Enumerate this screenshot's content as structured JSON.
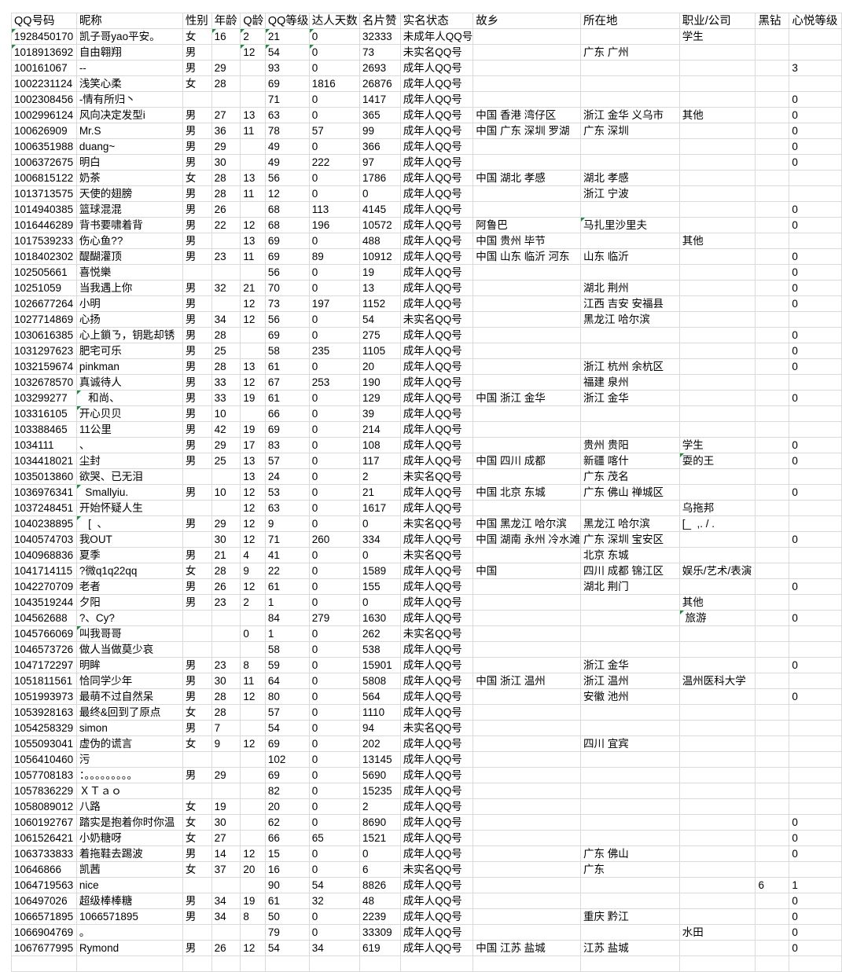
{
  "header": [
    "QQ号码",
    "昵称",
    "性别",
    "年龄",
    "Q龄",
    "QQ等级",
    "达人天数",
    "名片赞",
    "实名状态",
    "故乡",
    "所在地",
    "职业/公司",
    "黑钻",
    "心悦等级"
  ],
  "colors": {
    "grid": "#dadada",
    "text_flag": "#1e8a3a"
  },
  "rows": [
    {
      "cells": [
        "1928450170",
        "凯子哥yao平安。",
        "女",
        "16",
        "2",
        "21",
        "0",
        "32333",
        "未成年人QQ号",
        "",
        "",
        "学生",
        "",
        ""
      ],
      "flags": [
        0,
        3,
        4,
        5,
        6
      ]
    },
    {
      "cells": [
        "1018913692",
        "自由翱翔",
        "男",
        "",
        "12",
        "54",
        "0",
        "73",
        "未实名QQ号",
        "",
        "广东 广州",
        "",
        "",
        ""
      ],
      "flags": [
        0,
        4,
        5,
        6
      ]
    },
    {
      "cells": [
        "100161067",
        "--",
        "男",
        "29",
        "",
        "93",
        "0",
        "2693",
        "成年人QQ号",
        "",
        "",
        "",
        "",
        "3"
      ]
    },
    {
      "cells": [
        "1002231124",
        "浅笑心柔",
        "女",
        "28",
        "",
        "69",
        "1816",
        "26876",
        "成年人QQ号",
        "",
        "",
        "",
        "",
        ""
      ]
    },
    {
      "cells": [
        "1002308456",
        "-情有所归丶",
        "",
        "",
        "",
        "71",
        "0",
        "1417",
        "成年人QQ号",
        "",
        "",
        "",
        "",
        "0"
      ]
    },
    {
      "cells": [
        "1002996124",
        "风向决定发型i",
        "男",
        "27",
        "13",
        "63",
        "0",
        "365",
        "成年人QQ号",
        "中国 香港 湾仔区",
        "浙江 金华 义乌市",
        "其他",
        "",
        "0"
      ]
    },
    {
      "cells": [
        "100626909",
        "Mr.S",
        "男",
        "36",
        "11",
        "78",
        "57",
        "99",
        "成年人QQ号",
        "中国 广东 深圳 罗湖",
        "广东 深圳",
        "",
        "",
        "0"
      ]
    },
    {
      "cells": [
        "1006351988",
        "duang~",
        "男",
        "29",
        "",
        "49",
        "0",
        "366",
        "成年人QQ号",
        "",
        "",
        "",
        "",
        "0"
      ]
    },
    {
      "cells": [
        "1006372675",
        "明白",
        "男",
        "30",
        "",
        "49",
        "222",
        "97",
        "成年人QQ号",
        "",
        "",
        "",
        "",
        "0"
      ]
    },
    {
      "cells": [
        "1006815122",
        "奶茶",
        "女",
        "28",
        "13",
        "56",
        "0",
        "1786",
        "成年人QQ号",
        "中国 湖北 孝感",
        "湖北 孝感",
        "",
        "",
        ""
      ]
    },
    {
      "cells": [
        "1013713575",
        "天使的翅膀",
        "男",
        "28",
        "11",
        "12",
        "0",
        "0",
        "成年人QQ号",
        "",
        "浙江 宁波",
        "",
        "",
        ""
      ]
    },
    {
      "cells": [
        "1014940385",
        "篮球混混",
        "男",
        "26",
        "",
        "68",
        "113",
        "4145",
        "成年人QQ号",
        "",
        "",
        "",
        "",
        "0"
      ]
    },
    {
      "cells": [
        "1016446289",
        "背书要啸着背",
        "男",
        "22",
        "12",
        "68",
        "196",
        "10572",
        "成年人QQ号",
        "阿鲁巴",
        "马扎里沙里夫",
        "",
        "",
        "0"
      ],
      "flags": [
        10
      ]
    },
    {
      "cells": [
        "1017539233",
        "伤心鱼??",
        "男",
        "",
        "13",
        "69",
        "0",
        "488",
        "成年人QQ号",
        "中国 贵州 毕节",
        "",
        "其他",
        "",
        ""
      ]
    },
    {
      "cells": [
        "1018402302",
        "醍醐灌顶",
        "男",
        "23",
        "11",
        "69",
        "89",
        "10912",
        "成年人QQ号",
        "中国 山东 临沂 河东",
        "山东 临沂",
        "",
        "",
        "0"
      ]
    },
    {
      "cells": [
        "102505661",
        "喜悦樂",
        "",
        "",
        "",
        "56",
        "0",
        "19",
        "成年人QQ号",
        "",
        "",
        "",
        "",
        "0"
      ]
    },
    {
      "cells": [
        "10251059",
        "当我遇上你",
        "男",
        "32",
        "21",
        "70",
        "0",
        "13",
        "成年人QQ号",
        "",
        "湖北 荆州",
        "",
        "",
        "0"
      ]
    },
    {
      "cells": [
        "1026677264",
        "小明",
        "男",
        "",
        "12",
        "73",
        "197",
        "1152",
        "成年人QQ号",
        "",
        "江西 吉安 安福县",
        "",
        "",
        "0"
      ]
    },
    {
      "cells": [
        "1027714869",
        "心扬",
        "男",
        "34",
        "12",
        "56",
        "0",
        "54",
        "未实名QQ号",
        "",
        "黑龙江 哈尔滨",
        "",
        "",
        ""
      ]
    },
    {
      "cells": [
        "1030616385",
        "心上鎖ㄋ，钥匙却锈",
        "男",
        "28",
        "",
        "69",
        "0",
        "275",
        "成年人QQ号",
        "",
        "",
        "",
        "",
        "0"
      ]
    },
    {
      "cells": [
        "1031297623",
        "肥宅可乐",
        "男",
        "25",
        "",
        "58",
        "235",
        "1105",
        "成年人QQ号",
        "",
        "",
        "",
        "",
        "0"
      ]
    },
    {
      "cells": [
        "1032159674",
        "pinkman",
        "男",
        "28",
        "13",
        "61",
        "0",
        "20",
        "成年人QQ号",
        "",
        "浙江 杭州 余杭区",
        "",
        "",
        "0"
      ]
    },
    {
      "cells": [
        "1032678570",
        "真诚待人",
        "男",
        "33",
        "12",
        "67",
        "253",
        "190",
        "成年人QQ号",
        "",
        "福建 泉州",
        "",
        "",
        ""
      ]
    },
    {
      "cells": [
        "103299277",
        "   和尚、",
        "男",
        "33",
        "19",
        "61",
        "0",
        "129",
        "成年人QQ号",
        "中国 浙江 金华",
        "浙江 金华",
        "",
        "",
        "0"
      ],
      "flags": [
        1
      ]
    },
    {
      "cells": [
        "103316105",
        "开心贝贝",
        "男",
        "10",
        "",
        "66",
        "0",
        "39",
        "成年人QQ号",
        "",
        "",
        "",
        "",
        ""
      ],
      "flags": [
        1
      ]
    },
    {
      "cells": [
        "103388465",
        "11公里",
        "男",
        "42",
        "19",
        "69",
        "0",
        "214",
        "成年人QQ号",
        "",
        "",
        "",
        "",
        ""
      ]
    },
    {
      "cells": [
        "1034111",
        "、",
        "男",
        "29",
        "17",
        "83",
        "0",
        "108",
        "成年人QQ号",
        "",
        "贵州 贵阳",
        "学生",
        "",
        "0"
      ]
    },
    {
      "cells": [
        "1034418021",
        "尘封",
        "男",
        "25",
        "13",
        "57",
        "0",
        "117",
        "成年人QQ号",
        "中国 四川 成都",
        "新疆 喀什",
        "耍的王",
        "",
        "0"
      ],
      "flags": [
        11
      ]
    },
    {
      "cells": [
        "1035013860",
        "欲哭、已无泪",
        "",
        "",
        "13",
        "24",
        "0",
        "2",
        "未实名QQ号",
        "",
        "广东 茂名",
        "",
        "",
        ""
      ]
    },
    {
      "cells": [
        "1036976341",
        "  Smallyiu.",
        "男",
        "10",
        "12",
        "53",
        "0",
        "21",
        "成年人QQ号",
        "中国 北京 东城",
        "广东 佛山 禅城区",
        "",
        "",
        "0"
      ],
      "flags": [
        1
      ]
    },
    {
      "cells": [
        "1037248451",
        "开始怀疑人生",
        "",
        "",
        "12",
        "63",
        "0",
        "1617",
        "成年人QQ号",
        "",
        "",
        "乌拖邦",
        "",
        ""
      ]
    },
    {
      "cells": [
        "1040238895",
        "   [  、",
        "男",
        "29",
        "12",
        "9",
        "0",
        "0",
        "未实名QQ号",
        "中国 黑龙江 哈尔滨",
        "黑龙江 哈尔滨",
        "[_  ,. / .",
        "",
        ""
      ],
      "flags": [
        1
      ]
    },
    {
      "cells": [
        "1040574703",
        "我OUT",
        "",
        "30",
        "12",
        "71",
        "260",
        "334",
        "成年人QQ号",
        "中国 湖南 永州 冷水滩",
        "广东 深圳 宝安区",
        "",
        "",
        "0"
      ]
    },
    {
      "cells": [
        "1040968836",
        "夏季",
        "男",
        "21",
        "4",
        "41",
        "0",
        "0",
        "未实名QQ号",
        "",
        "北京 东城",
        "",
        "",
        ""
      ]
    },
    {
      "cells": [
        "1041714115",
        "?微q1q22qq",
        "女",
        "28",
        "9",
        "22",
        "0",
        "1589",
        "成年人QQ号",
        "中国",
        "四川 成都 锦江区",
        "娱乐/艺术/表演",
        "",
        ""
      ]
    },
    {
      "cells": [
        "1042270709",
        "老者",
        "男",
        "26",
        "12",
        "61",
        "0",
        "155",
        "成年人QQ号",
        "",
        "湖北 荆门",
        "",
        "",
        "0"
      ]
    },
    {
      "cells": [
        "1043519244",
        "夕阳",
        "男",
        "23",
        "2",
        "1",
        "0",
        "0",
        "成年人QQ号",
        "",
        "",
        "其他",
        "",
        ""
      ]
    },
    {
      "cells": [
        "104562688",
        "?、Cy?",
        "",
        "",
        "",
        "84",
        "279",
        "1630",
        "成年人QQ号",
        "",
        "",
        " 旅游",
        "",
        "0"
      ],
      "flags": [
        11
      ]
    },
    {
      "cells": [
        "1045766069",
        "叫我哥哥",
        "",
        "",
        "0",
        "1",
        "0",
        "262",
        "未实名QQ号",
        "",
        "",
        "",
        "",
        ""
      ],
      "flags": [
        1
      ]
    },
    {
      "cells": [
        "1046573726",
        "做人当做莫少哀",
        "",
        "",
        "",
        "58",
        "0",
        "538",
        "成年人QQ号",
        "",
        "",
        "",
        "",
        ""
      ]
    },
    {
      "cells": [
        "1047172297",
        "明眸",
        "男",
        "23",
        "8",
        "59",
        "0",
        "15901",
        "成年人QQ号",
        "",
        "浙江 金华",
        "",
        "",
        "0"
      ]
    },
    {
      "cells": [
        "1051811561",
        "恰同学少年",
        "男",
        "30",
        "11",
        "64",
        "0",
        "5808",
        "成年人QQ号",
        "中国 浙江 温州",
        "浙江 温州",
        "温州医科大学",
        "",
        ""
      ]
    },
    {
      "cells": [
        "1051993973",
        "最萌不过自然呆",
        "男",
        "28",
        "12",
        "80",
        "0",
        "564",
        "成年人QQ号",
        "",
        "安徽 池州",
        "",
        "",
        "0"
      ]
    },
    {
      "cells": [
        "1053928163",
        "最终&回到了原点",
        "女",
        "28",
        "",
        "57",
        "0",
        "1110",
        "成年人QQ号",
        "",
        "",
        "",
        "",
        ""
      ]
    },
    {
      "cells": [
        "1054258329",
        "simon",
        "男",
        "7",
        "",
        "54",
        "0",
        "94",
        "未实名QQ号",
        "",
        "",
        "",
        "",
        ""
      ]
    },
    {
      "cells": [
        "1055093041",
        "虚伪的谎言",
        "女",
        "9",
        "12",
        "69",
        "0",
        "202",
        "成年人QQ号",
        "",
        "四川 宜宾",
        "",
        "",
        ""
      ]
    },
    {
      "cells": [
        "1056410460",
        "污",
        "",
        "",
        "",
        "102",
        "0",
        "13145",
        "成年人QQ号",
        "",
        "",
        "",
        "",
        ""
      ]
    },
    {
      "cells": [
        "1057708183",
        "：。。。。。。。。。",
        "男",
        "29",
        "",
        "69",
        "0",
        "5690",
        "成年人QQ号",
        "",
        "",
        "",
        "",
        ""
      ]
    },
    {
      "cells": [
        "1057836229",
        "ＸＴａｏ",
        "",
        "",
        "",
        "82",
        "0",
        "15235",
        "成年人QQ号",
        "",
        "",
        "",
        "",
        ""
      ]
    },
    {
      "cells": [
        "1058089012",
        "八路",
        "女",
        "19",
        "",
        "20",
        "0",
        "2",
        "成年人QQ号",
        "",
        "",
        "",
        "",
        ""
      ]
    },
    {
      "cells": [
        "1060192767",
        "踏实是抱着你时你温",
        "女",
        "30",
        "",
        "62",
        "0",
        "8690",
        "成年人QQ号",
        "",
        "",
        "",
        "",
        "0"
      ]
    },
    {
      "cells": [
        "1061526421",
        "小奶糖呀",
        "女",
        "27",
        "",
        "66",
        "65",
        "1521",
        "成年人QQ号",
        "",
        "",
        "",
        "",
        "0"
      ]
    },
    {
      "cells": [
        "1063733833",
        "着拖鞋去踢波",
        "男",
        "14",
        "12",
        "15",
        "0",
        "0",
        "成年人QQ号",
        "",
        "广东 佛山",
        "",
        "",
        "0"
      ]
    },
    {
      "cells": [
        "10646866",
        "凯茜",
        "女",
        "37",
        "20",
        "16",
        "0",
        "6",
        "未实名QQ号",
        "",
        "广东",
        "",
        "",
        ""
      ]
    },
    {
      "cells": [
        "1064719563",
        "nice",
        "",
        "",
        "",
        "90",
        "54",
        "8826",
        "成年人QQ号",
        "",
        "",
        "",
        "6",
        "1"
      ]
    },
    {
      "cells": [
        "106497026",
        "超级棒棒糖",
        "男",
        "34",
        "19",
        "61",
        "32",
        "48",
        "成年人QQ号",
        "",
        "",
        "",
        "",
        "0"
      ]
    },
    {
      "cells": [
        "1066571895",
        "1066571895",
        "男",
        "34",
        "8",
        "50",
        "0",
        "2239",
        "成年人QQ号",
        "",
        "重庆 黔江",
        "",
        "",
        "0"
      ]
    },
    {
      "cells": [
        "1066904769",
        "。",
        "",
        "",
        "",
        "79",
        "0",
        "33309",
        "成年人QQ号",
        "",
        "",
        "水田",
        "",
        "0"
      ]
    },
    {
      "cells": [
        "1067677995",
        "Rymond",
        "男",
        "26",
        "12",
        "54",
        "34",
        "619",
        "成年人QQ号",
        "中国 江苏 盐城",
        "江苏 盐城",
        "",
        "",
        "0"
      ]
    }
  ]
}
